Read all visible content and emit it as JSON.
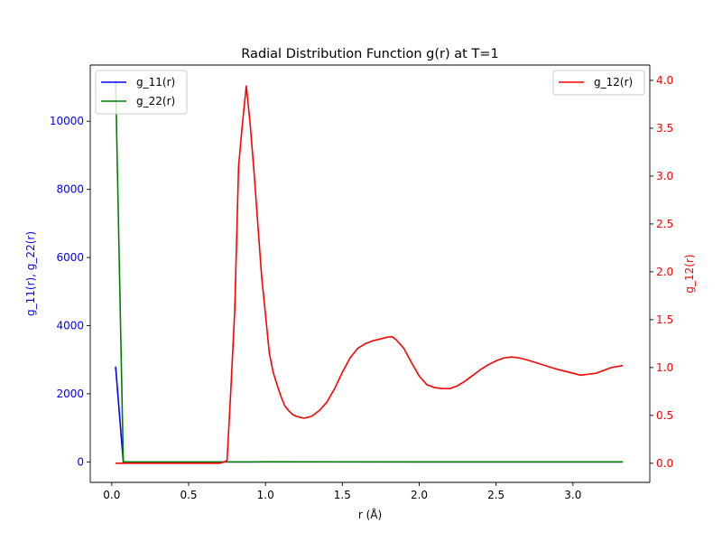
{
  "chart_data": {
    "type": "line",
    "title": "Radial Distribution Function g(r) at T=1",
    "xlabel": "r (Å)",
    "ylabel_left": "g_11(r), g_22(r)",
    "ylabel_right": "g_12(r)",
    "xlim": [
      -0.14,
      3.5
    ],
    "ylim_left": [
      -600,
      11650
    ],
    "ylim_right": [
      -0.2,
      4.16
    ],
    "xticks": [
      "0.0",
      "0.5",
      "1.0",
      "1.5",
      "2.0",
      "2.5",
      "3.0"
    ],
    "xtick_values": [
      0,
      0.5,
      1.0,
      1.5,
      2.0,
      2.5,
      3.0
    ],
    "yticks_left": [
      "0",
      "2000",
      "4000",
      "6000",
      "8000",
      "10000"
    ],
    "ytick_values_left": [
      0,
      2000,
      4000,
      6000,
      8000,
      10000
    ],
    "yticks_right": [
      "0.0",
      "0.5",
      "1.0",
      "1.5",
      "2.0",
      "2.5",
      "3.0",
      "3.5",
      "4.0"
    ],
    "ytick_values_right": [
      0,
      0.5,
      1.0,
      1.5,
      2.0,
      2.5,
      3.0,
      3.5,
      4.0
    ],
    "legend_left_placement": "top-left",
    "legend_right_placement": "top-right",
    "grid": false,
    "colors": {
      "left_axis": "#0000ff",
      "right_axis": "#ff0000"
    },
    "series": [
      {
        "name": "g_11(r)",
        "axis": "left",
        "color": "#0000ff",
        "x": [
          0.025,
          0.075,
          0.125,
          0.2,
          0.3,
          0.4,
          0.5,
          0.6,
          0.7,
          0.75,
          0.8,
          0.9,
          1.0,
          1.5,
          2.0,
          2.5,
          3.0,
          3.325
        ],
        "y": [
          2800,
          0,
          0,
          0,
          0,
          0,
          0,
          0,
          0,
          0,
          0,
          0,
          0,
          0,
          0,
          0,
          0,
          0
        ]
      },
      {
        "name": "g_22(r)",
        "axis": "left",
        "color": "#008000",
        "x": [
          0.025,
          0.075,
          0.125,
          0.2,
          0.3,
          0.4,
          0.5,
          0.6,
          0.7,
          0.75,
          0.8,
          0.9,
          1.0,
          1.5,
          2.0,
          2.5,
          3.0,
          3.325
        ],
        "y": [
          11200,
          0,
          0,
          0,
          0,
          0,
          0,
          0,
          0,
          0,
          0,
          0,
          5,
          3,
          2,
          1,
          1,
          1
        ]
      },
      {
        "name": "g_12(r)",
        "axis": "right",
        "color": "#ff0000",
        "x": [
          0.025,
          0.1,
          0.2,
          0.3,
          0.4,
          0.5,
          0.6,
          0.7,
          0.725,
          0.75,
          0.775,
          0.8,
          0.825,
          0.85,
          0.875,
          0.9,
          0.925,
          0.95,
          0.975,
          1.0,
          1.025,
          1.05,
          1.075,
          1.1,
          1.125,
          1.15,
          1.175,
          1.2,
          1.225,
          1.25,
          1.3,
          1.35,
          1.4,
          1.45,
          1.5,
          1.55,
          1.6,
          1.65,
          1.7,
          1.75,
          1.8,
          1.825,
          1.85,
          1.9,
          1.95,
          2.0,
          2.05,
          2.1,
          2.15,
          2.2,
          2.25,
          2.3,
          2.35,
          2.4,
          2.45,
          2.5,
          2.55,
          2.6,
          2.65,
          2.7,
          2.8,
          2.9,
          3.0,
          3.05,
          3.1,
          3.15,
          3.2,
          3.25,
          3.325
        ],
        "y": [
          0,
          0,
          0,
          0,
          0,
          0,
          0,
          0,
          0.01,
          0.03,
          0.78,
          1.6,
          3.1,
          3.55,
          3.94,
          3.55,
          3.05,
          2.5,
          1.95,
          1.55,
          1.15,
          0.95,
          0.82,
          0.7,
          0.6,
          0.55,
          0.51,
          0.49,
          0.48,
          0.47,
          0.49,
          0.55,
          0.64,
          0.78,
          0.95,
          1.1,
          1.2,
          1.25,
          1.28,
          1.3,
          1.32,
          1.32,
          1.29,
          1.2,
          1.05,
          0.91,
          0.82,
          0.79,
          0.78,
          0.78,
          0.81,
          0.86,
          0.92,
          0.98,
          1.03,
          1.07,
          1.1,
          1.11,
          1.1,
          1.08,
          1.03,
          0.98,
          0.94,
          0.92,
          0.93,
          0.94,
          0.97,
          1.0,
          1.02
        ]
      }
    ]
  }
}
